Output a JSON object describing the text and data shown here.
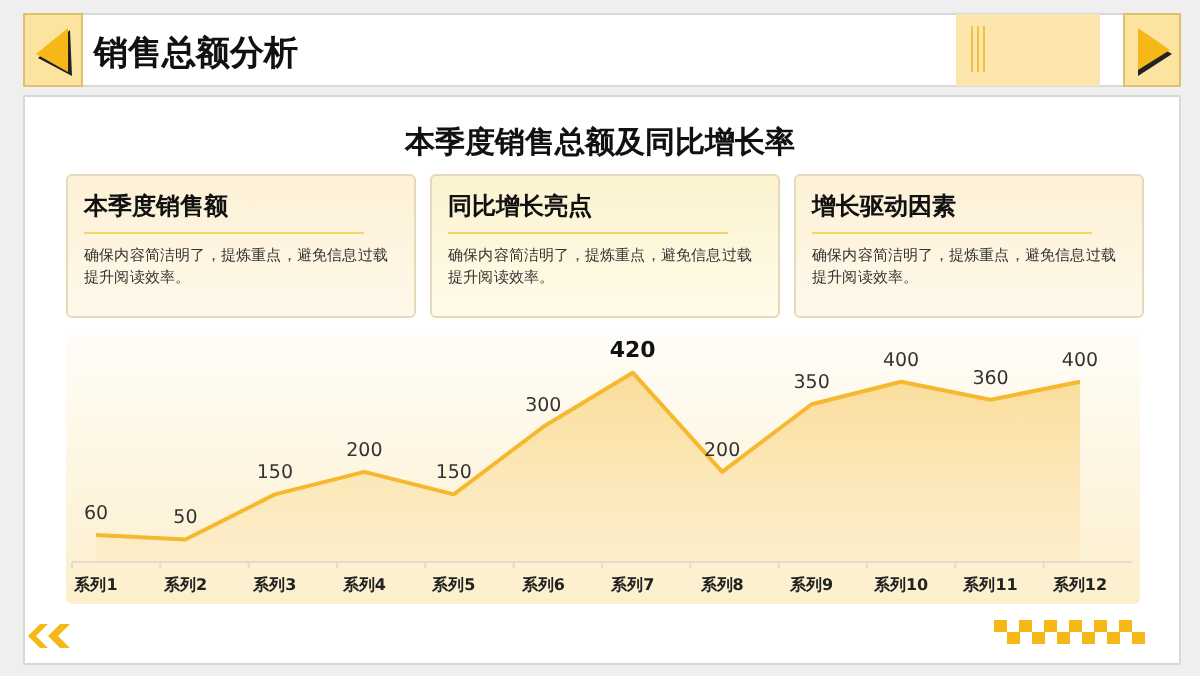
{
  "chart_data": [
    {
      "type": "other",
      "title": "销售总额分析",
      "annotations": [
        "本季度销售额",
        "确保内容简洁明了，提炼重点，避免信息过载提升阅读效率。",
        "同比增长亮点",
        "确保内容简洁明了，提炼重点，避免信息过载提升阅读效率。",
        "增长驱动因素",
        "确保内容简洁明了，提炼重点，避免信息过载提升阅读效率。"
      ]
    },
    {
      "type": "area",
      "title": "本季度销售总额及同比增长率",
      "categories": [
        "系列1",
        "系列2",
        "系列3",
        "系列4",
        "系列5",
        "系列6",
        "系列7",
        "系列8",
        "系列9",
        "系列10",
        "系列11",
        "系列12"
      ],
      "series": [
        {
          "color": "#f5b82e",
          "values": [
            60,
            50,
            150,
            200,
            150,
            300,
            420,
            200,
            350,
            400,
            360,
            400
          ]
        }
      ],
      "data_labels": true
    }
  ]
}
